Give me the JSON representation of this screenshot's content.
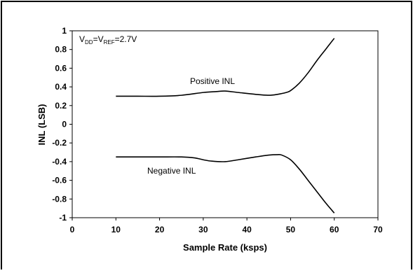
{
  "chart_data": {
    "type": "line",
    "xlabel": "Sample Rate (ksps)",
    "ylabel": "INL (LSB)",
    "xlim": [
      0,
      70
    ],
    "ylim": [
      -1,
      1
    ],
    "x_ticks": [
      "0",
      "10",
      "20",
      "30",
      "40",
      "50",
      "60",
      "70"
    ],
    "y_ticks": [
      "1",
      "0.8",
      "0.6",
      "0.4",
      "0.2",
      "0",
      "-0.2",
      "-0.4",
      "-0.6",
      "-0.8",
      "-1"
    ],
    "grid": false,
    "condition_text": {
      "v1": "V",
      "v1_sub": "DD",
      "eq1": "=V",
      "v2_sub": "REF",
      "eq2": "=2.7V"
    },
    "series": [
      {
        "name": "Positive INL",
        "x": [
          10,
          15,
          20,
          25,
          30,
          33,
          35,
          38,
          42,
          45,
          47,
          49,
          50,
          52,
          54,
          56,
          58,
          60
        ],
        "y": [
          0.3,
          0.3,
          0.3,
          0.31,
          0.34,
          0.35,
          0.355,
          0.34,
          0.32,
          0.31,
          0.32,
          0.34,
          0.36,
          0.44,
          0.55,
          0.68,
          0.8,
          0.92
        ]
      },
      {
        "name": "Negative INL",
        "x": [
          10,
          15,
          20,
          25,
          28,
          30,
          32,
          35,
          38,
          42,
          45,
          47,
          48,
          50,
          52,
          54,
          56,
          58,
          60
        ],
        "y": [
          -0.35,
          -0.35,
          -0.35,
          -0.35,
          -0.36,
          -0.38,
          -0.395,
          -0.4,
          -0.38,
          -0.35,
          -0.33,
          -0.325,
          -0.33,
          -0.38,
          -0.48,
          -0.6,
          -0.72,
          -0.84,
          -0.95
        ]
      }
    ]
  }
}
